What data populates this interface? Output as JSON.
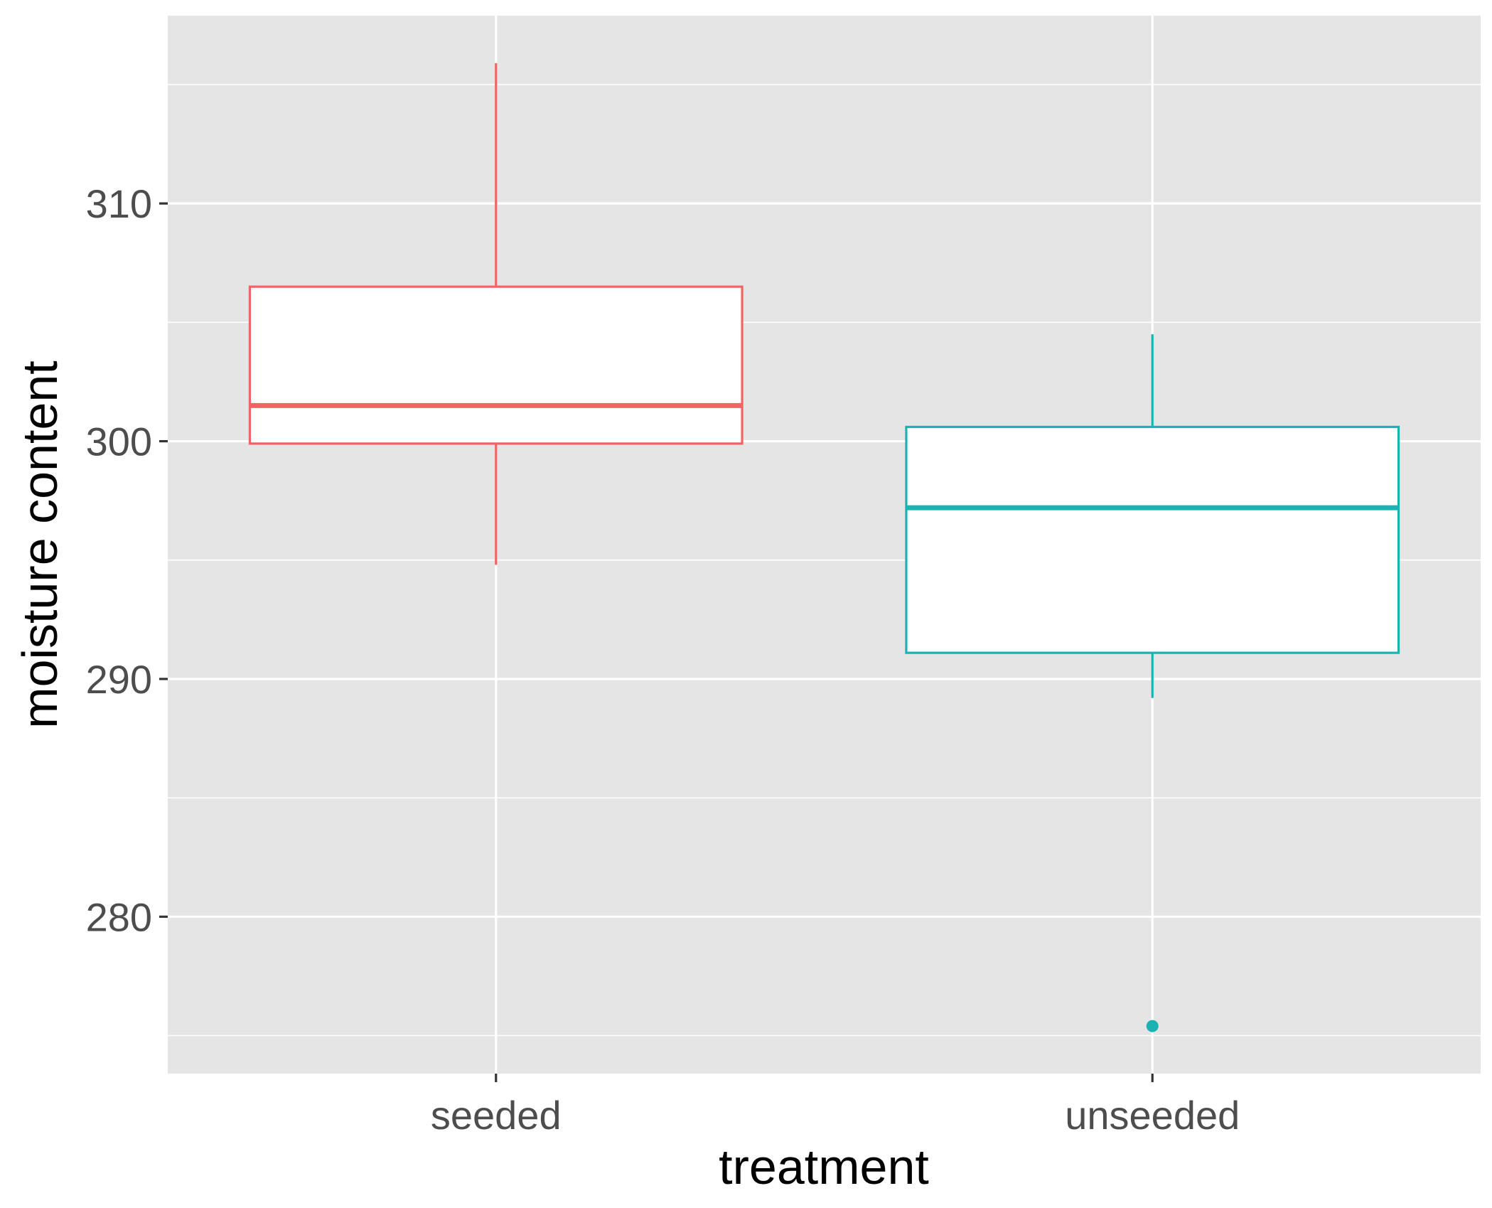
{
  "chart_data": {
    "type": "boxplot",
    "xlabel": "treatment",
    "ylabel": "moisture content",
    "categories": [
      "seeded",
      "unseeded"
    ],
    "ylim": [
      273.4,
      317.9
    ],
    "yticks": [
      280,
      290,
      300,
      310
    ],
    "ytick_labels": [
      "280",
      "290",
      "300",
      "310"
    ],
    "grid": true,
    "colors": {
      "panel": "#e5e5e5",
      "grid": "#ffffff",
      "seeded": "#f06464",
      "unseeded": "#1ab2b2",
      "tick_text": "#4d4d4d",
      "axis_title": "#000000"
    },
    "boxes": [
      {
        "category": "seeded",
        "whisker_low": 294.8,
        "q1": 299.9,
        "median": 301.5,
        "q3": 306.5,
        "whisker_high": 315.9,
        "outliers": []
      },
      {
        "category": "unseeded",
        "whisker_low": 289.2,
        "q1": 291.1,
        "median": 297.2,
        "q3": 300.6,
        "whisker_high": 304.5,
        "outliers": [
          275.4
        ]
      }
    ]
  }
}
